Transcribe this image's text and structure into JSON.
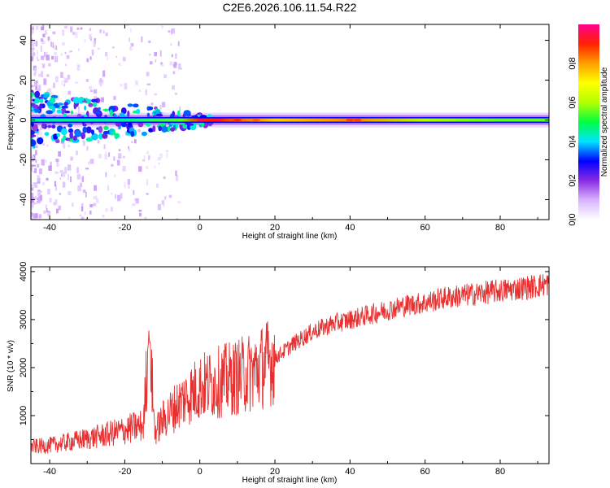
{
  "chart_data": [
    {
      "type": "heatmap",
      "title": "C2E6.2026.106.11.54.R22",
      "xlabel": "Height of straight line (km)",
      "ylabel": "Frequency (Hz)",
      "xlim": [
        -45,
        93
      ],
      "ylim": [
        -50,
        48
      ],
      "x_ticks": [
        -40,
        -20,
        0,
        20,
        40,
        60,
        80
      ],
      "y_ticks": [
        -40,
        -20,
        0,
        20,
        40
      ],
      "colorbar": {
        "label": "Normalized spectral amplitude",
        "range": [
          0,
          1
        ],
        "ticks": [
          0.0,
          0.2,
          0.4,
          0.6,
          0.8
        ],
        "tick_labels": [
          "0.0",
          "0.2",
          "0.4",
          "0.6",
          "0.8"
        ],
        "colors": [
          "#ffffff",
          "#d8b4ff",
          "#8a2be2",
          "#0000ff",
          "#00e5ff",
          "#00ff40",
          "#b4ff00",
          "#ffff00",
          "#ffa000",
          "#ff2000",
          "#ff0090"
        ]
      },
      "band": {
        "center_freq_hz": 0,
        "core_amplitude_by_height": [
          {
            "x": -40,
            "amplitude": 0.45
          },
          {
            "x": -20,
            "amplitude": 0.45
          },
          {
            "x": -5,
            "amplitude": 0.55
          },
          {
            "x": 0,
            "amplitude": 0.9
          },
          {
            "x": 5,
            "amplitude": 0.9
          },
          {
            "x": 10,
            "amplitude": 0.85
          },
          {
            "x": 20,
            "amplitude": 0.75
          },
          {
            "x": 40,
            "amplitude": 0.82
          },
          {
            "x": 60,
            "amplitude": 0.6
          },
          {
            "x": 80,
            "amplitude": 0.55
          },
          {
            "x": 93,
            "amplitude": 0.55
          }
        ]
      }
    },
    {
      "type": "line",
      "xlabel": "Height of straight line (km)",
      "ylabel": "SNR (10 * v/v)",
      "xlim": [
        -45,
        93
      ],
      "ylim": [
        0,
        4100
      ],
      "x_ticks": [
        -40,
        -20,
        0,
        20,
        40,
        60,
        80
      ],
      "y_ticks": [
        1000,
        2000,
        3000,
        4000
      ],
      "series": [
        {
          "name": "SNR",
          "color": "#e83030",
          "x": [
            -45,
            -40,
            -35,
            -30,
            -25,
            -20,
            -15,
            -13.5,
            -12,
            -10,
            -5,
            0,
            5,
            10,
            15,
            20,
            25,
            30,
            35,
            40,
            45,
            50,
            55,
            60,
            65,
            70,
            75,
            80,
            85,
            90,
            93
          ],
          "y": [
            350,
            380,
            450,
            520,
            600,
            700,
            800,
            2800,
            650,
            900,
            1300,
            1600,
            1700,
            1800,
            1950,
            2200,
            2500,
            2750,
            2900,
            3000,
            3100,
            3200,
            3300,
            3350,
            3450,
            3500,
            3550,
            3600,
            3650,
            3700,
            3750
          ]
        }
      ]
    }
  ]
}
